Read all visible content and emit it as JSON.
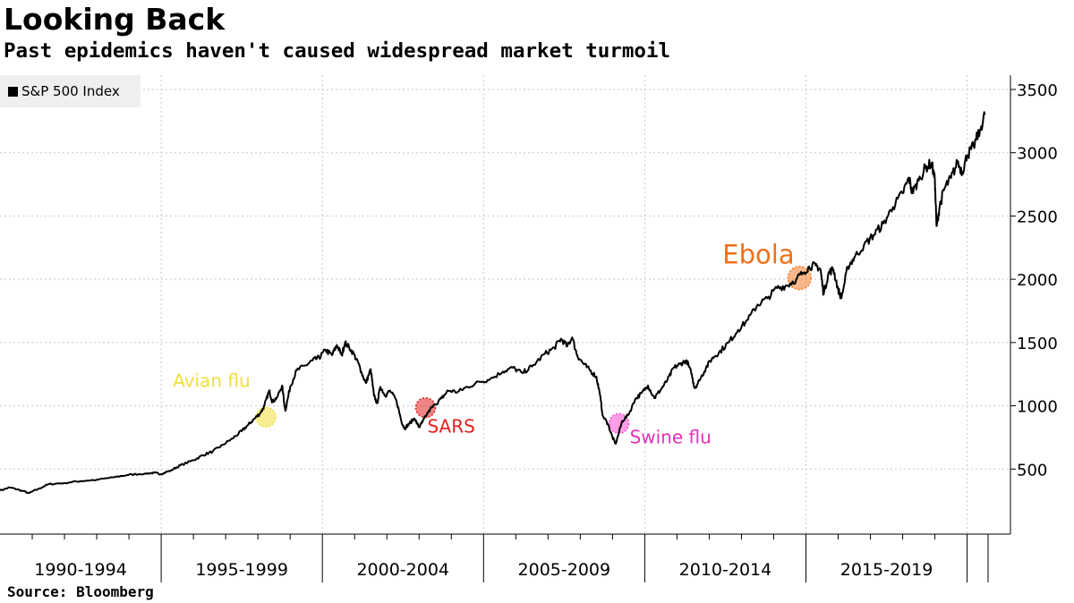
{
  "title": "Looking Back",
  "subtitle": "Past epidemics haven't caused widespread market turmoil",
  "source": "Source: Bloomberg",
  "chart_data": {
    "type": "line",
    "title": "Looking Back",
    "subtitle": "Past epidemics haven't caused widespread market turmoil",
    "xlabel": "",
    "ylabel": "",
    "xlim": [
      1988.0,
      2020.3
    ],
    "ylim": [
      0,
      3500
    ],
    "y_ticks": [
      500,
      1000,
      1500,
      2000,
      2500,
      3000,
      3500
    ],
    "y_axis_side": "right",
    "grid": true,
    "legend_position": "top-left",
    "periods": [
      {
        "label": "1990-1994",
        "start": 1988.0,
        "end": 1993.0
      },
      {
        "label": "1995-1999",
        "start": 1993.0,
        "end": 1998.0
      },
      {
        "label": "2000-2004",
        "start": 1998.0,
        "end": 2003.0
      },
      {
        "label": "2005-2009",
        "start": 2003.0,
        "end": 2008.0
      },
      {
        "label": "2010-2014",
        "start": 2008.0,
        "end": 2013.0
      },
      {
        "label": "2015-2019",
        "start": 2013.0,
        "end": 2018.0
      }
    ],
    "series": [
      {
        "name": "S&P 500 Index",
        "color": "#000000",
        "points": [
          [
            1988.0,
            330
          ],
          [
            1988.3,
            355
          ],
          [
            1988.6,
            335
          ],
          [
            1988.9,
            310
          ],
          [
            1989.2,
            345
          ],
          [
            1989.5,
            380
          ],
          [
            1990.0,
            390
          ],
          [
            1990.5,
            405
          ],
          [
            1991.0,
            415
          ],
          [
            1991.5,
            435
          ],
          [
            1992.0,
            455
          ],
          [
            1992.5,
            465
          ],
          [
            1992.8,
            470
          ],
          [
            1993.0,
            460
          ],
          [
            1993.3,
            490
          ],
          [
            1993.6,
            530
          ],
          [
            1994.0,
            570
          ],
          [
            1994.3,
            610
          ],
          [
            1994.6,
            640
          ],
          [
            1994.9,
            690
          ],
          [
            1995.2,
            740
          ],
          [
            1995.5,
            800
          ],
          [
            1995.7,
            850
          ],
          [
            1995.9,
            900
          ],
          [
            1996.1,
            950
          ],
          [
            1996.2,
            1000
          ],
          [
            1996.35,
            1120
          ],
          [
            1996.45,
            1030
          ],
          [
            1996.6,
            1070
          ],
          [
            1996.75,
            1160
          ],
          [
            1996.85,
            960
          ],
          [
            1997.0,
            1150
          ],
          [
            1997.2,
            1280
          ],
          [
            1997.5,
            1320
          ],
          [
            1997.7,
            1360
          ],
          [
            1997.9,
            1380
          ],
          [
            1998.1,
            1440
          ],
          [
            1998.3,
            1400
          ],
          [
            1998.45,
            1480
          ],
          [
            1998.6,
            1400
          ],
          [
            1998.7,
            1500
          ],
          [
            1998.9,
            1440
          ],
          [
            1999.1,
            1350
          ],
          [
            1999.2,
            1270
          ],
          [
            1999.35,
            1180
          ],
          [
            1999.5,
            1290
          ],
          [
            1999.6,
            1080
          ],
          [
            1999.7,
            1020
          ],
          [
            1999.8,
            1150
          ],
          [
            1999.95,
            1080
          ],
          [
            2000.1,
            1120
          ],
          [
            2000.3,
            1040
          ],
          [
            2000.45,
            880
          ],
          [
            2000.55,
            820
          ],
          [
            2000.7,
            860
          ],
          [
            2000.85,
            900
          ],
          [
            2001.0,
            830
          ],
          [
            2001.1,
            870
          ],
          [
            2001.3,
            960
          ],
          [
            2001.5,
            1010
          ],
          [
            2001.7,
            1060
          ],
          [
            2001.9,
            1120
          ],
          [
            2002.2,
            1110
          ],
          [
            2002.5,
            1150
          ],
          [
            2002.9,
            1190
          ],
          [
            2003.2,
            1210
          ],
          [
            2003.6,
            1270
          ],
          [
            2003.9,
            1300
          ],
          [
            2004.2,
            1260
          ],
          [
            2004.5,
            1310
          ],
          [
            2004.9,
            1410
          ],
          [
            2005.2,
            1460
          ],
          [
            2005.4,
            1530
          ],
          [
            2005.6,
            1470
          ],
          [
            2005.75,
            1540
          ],
          [
            2005.9,
            1400
          ],
          [
            2006.1,
            1330
          ],
          [
            2006.3,
            1280
          ],
          [
            2006.5,
            1230
          ],
          [
            2006.6,
            1100
          ],
          [
            2006.7,
            920
          ],
          [
            2006.85,
            860
          ],
          [
            2007.0,
            750
          ],
          [
            2007.1,
            700
          ],
          [
            2007.3,
            880
          ],
          [
            2007.5,
            930
          ],
          [
            2007.7,
            1050
          ],
          [
            2007.9,
            1100
          ],
          [
            2008.1,
            1160
          ],
          [
            2008.3,
            1060
          ],
          [
            2008.5,
            1130
          ],
          [
            2008.7,
            1200
          ],
          [
            2008.9,
            1300
          ],
          [
            2009.1,
            1330
          ],
          [
            2009.3,
            1360
          ],
          [
            2009.45,
            1250
          ],
          [
            2009.55,
            1140
          ],
          [
            2009.7,
            1200
          ],
          [
            2009.9,
            1300
          ],
          [
            2010.1,
            1380
          ],
          [
            2010.3,
            1420
          ],
          [
            2010.6,
            1500
          ],
          [
            2010.9,
            1600
          ],
          [
            2011.2,
            1680
          ],
          [
            2011.5,
            1800
          ],
          [
            2011.8,
            1850
          ],
          [
            2012.1,
            1930
          ],
          [
            2012.4,
            1950
          ],
          [
            2012.7,
            2000
          ],
          [
            2012.9,
            2050
          ],
          [
            2013.1,
            2100
          ],
          [
            2013.3,
            2110
          ],
          [
            2013.45,
            2080
          ],
          [
            2013.55,
            1880
          ],
          [
            2013.7,
            2050
          ],
          [
            2013.85,
            2080
          ],
          [
            2014.0,
            1920
          ],
          [
            2014.1,
            1850
          ],
          [
            2014.3,
            2100
          ],
          [
            2014.5,
            2170
          ],
          [
            2014.8,
            2270
          ],
          [
            2015.1,
            2350
          ],
          [
            2015.4,
            2440
          ],
          [
            2015.7,
            2570
          ],
          [
            2016.0,
            2680
          ],
          [
            2016.2,
            2800
          ],
          [
            2016.3,
            2680
          ],
          [
            2016.5,
            2780
          ],
          [
            2016.7,
            2880
          ],
          [
            2016.9,
            2920
          ],
          [
            2017.0,
            2780
          ],
          [
            2017.05,
            2420
          ],
          [
            2017.15,
            2580
          ],
          [
            2017.3,
            2720
          ],
          [
            2017.5,
            2800
          ],
          [
            2017.7,
            2920
          ],
          [
            2017.85,
            2850
          ],
          [
            2018.0,
            2980
          ],
          [
            2018.2,
            3050
          ],
          [
            2018.4,
            3180
          ],
          [
            2018.55,
            3300
          ]
        ]
      }
    ],
    "annotations": [
      {
        "label": "Avian flu",
        "x": 1996.25,
        "y": 910,
        "color": "#f0e03c",
        "text_color": "#f0e03c"
      },
      {
        "label": "SARS",
        "x": 2001.2,
        "y": 985,
        "color": "#e02020",
        "text_color": "#e02020"
      },
      {
        "label": "Swine flu",
        "x": 2007.2,
        "y": 860,
        "color": "#ff4fd2",
        "text_color": "#e62fb8"
      },
      {
        "label": "Ebola",
        "x": 2012.8,
        "y": 2010,
        "color": "#f57c28",
        "text_color": "#f07018"
      }
    ]
  }
}
